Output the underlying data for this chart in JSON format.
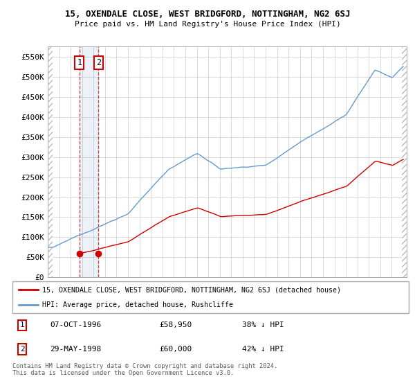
{
  "title": "15, OXENDALE CLOSE, WEST BRIDGFORD, NOTTINGHAM, NG2 6SJ",
  "subtitle": "Price paid vs. HM Land Registry's House Price Index (HPI)",
  "legend_line1": "15, OXENDALE CLOSE, WEST BRIDGFORD, NOTTINGHAM, NG2 6SJ (detached house)",
  "legend_line2": "HPI: Average price, detached house, Rushcliffe",
  "sale1_date": "07-OCT-1996",
  "sale1_price": 58950,
  "sale1_label": "38% ↓ HPI",
  "sale2_date": "29-MAY-1998",
  "sale2_price": 60000,
  "sale2_label": "42% ↓ HPI",
  "footnote": "Contains HM Land Registry data © Crown copyright and database right 2024.\nThis data is licensed under the Open Government Licence v3.0.",
  "red_color": "#cc0000",
  "blue_color": "#6699cc",
  "background_color": "#ffffff",
  "ylim": [
    0,
    575000
  ],
  "yticks": [
    0,
    50000,
    100000,
    150000,
    200000,
    250000,
    300000,
    350000,
    400000,
    450000,
    500000,
    550000
  ],
  "sale1_t": 1996.75,
  "sale2_t": 1998.417
}
